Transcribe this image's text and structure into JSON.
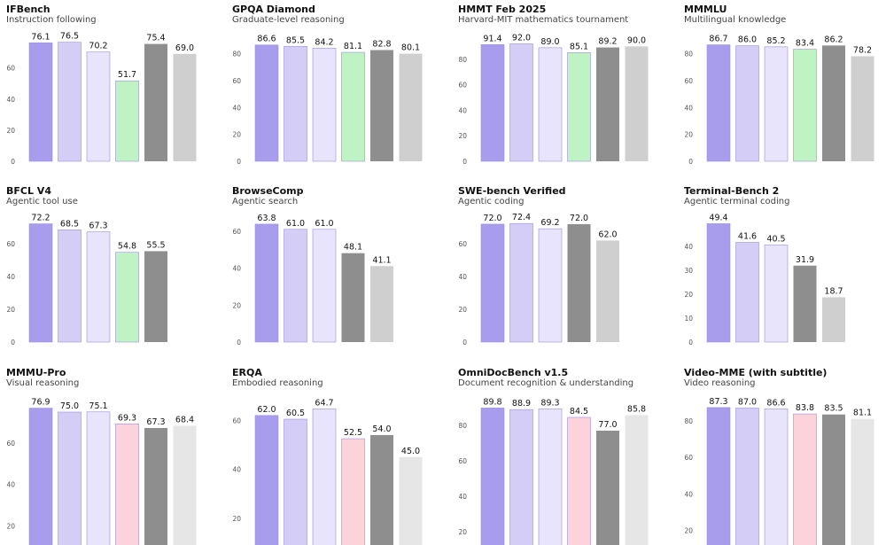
{
  "colors": {
    "purple_dark": "#a89cec",
    "purple_mid": "#d4cef6",
    "purple_light": "#e7e4fb",
    "green": "#bff3c3",
    "gray_dark": "#8e8e8e",
    "gray_light": "#cfcfcf",
    "pink": "#fcd3da",
    "gray_pale": "#e6e6e6"
  },
  "chart_data": [
    {
      "type": "bar",
      "title": "IFBench",
      "subtitle": "Instruction following",
      "values": [
        76.1,
        76.5,
        70.2,
        51.7,
        75.4,
        69.0
      ],
      "colors": [
        "purple_dark",
        "purple_mid",
        "purple_light",
        "green",
        "gray_dark",
        "gray_light"
      ],
      "yticks": [
        0,
        20,
        40,
        60
      ],
      "ylim": [
        0,
        82
      ]
    },
    {
      "type": "bar",
      "title": "GPQA Diamond",
      "subtitle": "Graduate-level reasoning",
      "values": [
        86.6,
        85.5,
        84.2,
        81.1,
        82.8,
        80.1
      ],
      "colors": [
        "purple_dark",
        "purple_mid",
        "purple_light",
        "green",
        "gray_dark",
        "gray_light"
      ],
      "yticks": [
        0,
        20,
        40,
        60,
        80
      ],
      "ylim": [
        0,
        95
      ]
    },
    {
      "type": "bar",
      "title": "HMMT Feb 2025",
      "subtitle": "Harvard-MIT mathematics tournament",
      "values": [
        91.4,
        92.0,
        89.0,
        85.1,
        89.2,
        90.0
      ],
      "colors": [
        "purple_dark",
        "purple_mid",
        "purple_light",
        "green",
        "gray_dark",
        "gray_light"
      ],
      "yticks": [
        0,
        20,
        40,
        60,
        80
      ],
      "ylim": [
        0,
        100
      ]
    },
    {
      "type": "bar",
      "title": "MMMLU",
      "subtitle": "Multilingual knowledge",
      "values": [
        86.7,
        86.0,
        85.2,
        83.4,
        86.2,
        78.2
      ],
      "colors": [
        "purple_dark",
        "purple_mid",
        "purple_light",
        "green",
        "gray_dark",
        "gray_light"
      ],
      "yticks": [
        0,
        20,
        40,
        60,
        80
      ],
      "ylim": [
        0,
        95
      ]
    },
    {
      "type": "bar",
      "title": "BFCL V4",
      "subtitle": "Agentic tool use",
      "values": [
        72.2,
        68.5,
        67.3,
        54.8,
        55.5
      ],
      "colors": [
        "purple_dark",
        "purple_mid",
        "purple_light",
        "green",
        "gray_dark"
      ],
      "yticks": [
        0,
        20,
        40,
        60
      ],
      "ylim": [
        0,
        79
      ]
    },
    {
      "type": "bar",
      "title": "BrowseComp",
      "subtitle": "Agentic search",
      "values": [
        63.8,
        61.0,
        61.0,
        48.1,
        41.1
      ],
      "colors": [
        "purple_dark",
        "purple_mid",
        "purple_light",
        "gray_dark",
        "gray_light"
      ],
      "yticks": [
        0,
        20,
        40,
        60
      ],
      "ylim": [
        0,
        70
      ]
    },
    {
      "type": "bar",
      "title": "SWE-bench Verified",
      "subtitle": "Agentic coding",
      "values": [
        72.0,
        72.4,
        69.2,
        72.0,
        62.0
      ],
      "colors": [
        "purple_dark",
        "purple_mid",
        "purple_light",
        "gray_dark",
        "gray_light"
      ],
      "yticks": [
        0,
        20,
        40,
        60
      ],
      "ylim": [
        0,
        79
      ]
    },
    {
      "type": "bar",
      "title": "Terminal-Bench 2",
      "subtitle": "Agentic terminal coding",
      "values": [
        49.4,
        41.6,
        40.5,
        31.9,
        18.7
      ],
      "colors": [
        "purple_dark",
        "purple_mid",
        "purple_light",
        "gray_dark",
        "gray_light"
      ],
      "yticks": [
        0,
        10,
        20,
        30,
        40
      ],
      "ylim": [
        0,
        54
      ]
    },
    {
      "type": "bar",
      "title": "MMMU-Pro",
      "subtitle": "Visual reasoning",
      "values": [
        76.9,
        75.0,
        75.1,
        69.3,
        67.3,
        68.4
      ],
      "colors": [
        "purple_dark",
        "purple_mid",
        "purple_light",
        "pink",
        "gray_dark",
        "gray_pale"
      ],
      "yticks": [
        20,
        40,
        60
      ],
      "ylim": [
        0,
        84
      ]
    },
    {
      "type": "bar",
      "title": "ERQA",
      "subtitle": "Embodied reasoning",
      "values": [
        62.0,
        60.5,
        64.7,
        52.5,
        54.0,
        45.0
      ],
      "colors": [
        "purple_dark",
        "purple_mid",
        "purple_light",
        "pink",
        "gray_dark",
        "gray_pale"
      ],
      "yticks": [
        20,
        40,
        60
      ],
      "ylim": [
        0,
        71
      ]
    },
    {
      "type": "bar",
      "title": "OmniDocBench v1.5",
      "subtitle": "Document recognition & understanding",
      "values": [
        89.8,
        88.9,
        89.3,
        84.5,
        77.0,
        85.8
      ],
      "colors": [
        "purple_dark",
        "purple_mid",
        "purple_light",
        "pink",
        "gray_dark",
        "gray_pale"
      ],
      "yticks": [
        20,
        40,
        60,
        80
      ],
      "ylim": [
        0,
        98
      ]
    },
    {
      "type": "bar",
      "title": "Video-MME (with subtitle)",
      "subtitle": "Video reasoning",
      "values": [
        87.3,
        87.0,
        86.6,
        83.8,
        83.5,
        81.1
      ],
      "colors": [
        "purple_dark",
        "purple_mid",
        "purple_light",
        "pink",
        "gray_dark",
        "gray_pale"
      ],
      "yticks": [
        20,
        40,
        60,
        80
      ],
      "ylim": [
        0,
        95
      ]
    }
  ]
}
